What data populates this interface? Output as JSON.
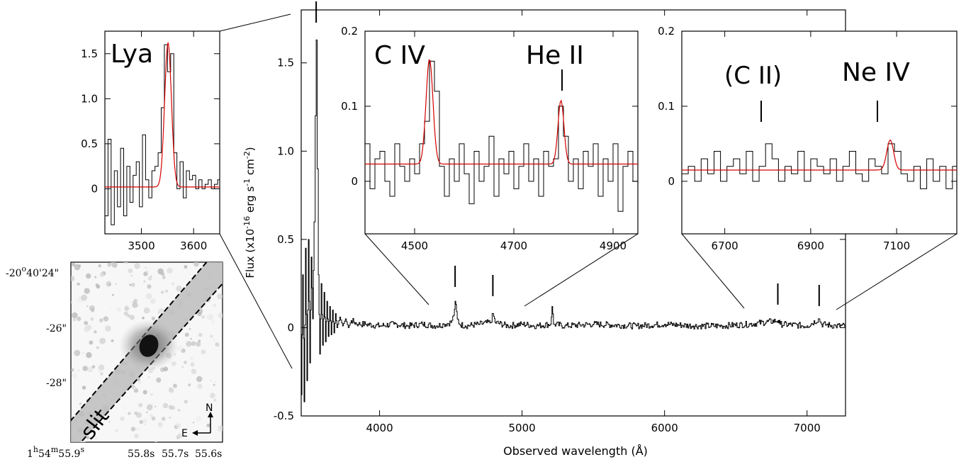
{
  "figure": {
    "main_ylabel": "Flux (x10",
    "main_ylabel_exp1": "-16",
    "main_ylabel_mid": " erg s",
    "main_ylabel_exp2": "-1",
    "main_ylabel_mid2": " cm",
    "main_ylabel_exp3": "-2",
    "main_ylabel_end": ")",
    "main_xlabel": "Observed wavelength (Å)"
  },
  "labels": {
    "lya": "Lya",
    "civ": "C IV",
    "heii": "He II",
    "cii": "(C II)",
    "neiv": "Ne IV",
    "slit": "slit",
    "north": "N",
    "east": "E"
  },
  "image_axes": {
    "dec_ticks": [
      {
        "label": "-20",
        "sup": "o",
        "rest": "40'24\""
      },
      {
        "label": "-26\""
      },
      {
        "label": "-28\""
      }
    ],
    "ra_first": {
      "base": "1",
      "h": "h",
      "mid": "54",
      "m": "m",
      "sec": "55.9",
      "s": "s"
    },
    "ra_ticks": [
      "55.8s",
      "55.7s",
      "55.6s"
    ]
  },
  "colors": {
    "data_line": "#000000",
    "model_line": "#d40000",
    "slit_fill": "#bdbdbd",
    "galaxy_core": "#111111"
  },
  "chart_data": [
    {
      "id": "main",
      "type": "line",
      "title": "",
      "xlabel": "Observed wavelength (Å)",
      "ylabel": "Flux (x10^-16 erg s^-1 cm^-2)",
      "xlim": [
        3450,
        7270
      ],
      "ylim": [
        -0.5,
        1.8
      ],
      "xticks": [
        4000,
        5000,
        6000,
        7000
      ],
      "yticks": [
        -0.5,
        0,
        0.5,
        1.0,
        1.5
      ],
      "ytick_labels": [
        "-0.5",
        "0",
        "0.5",
        "1.0",
        "1.5"
      ],
      "line_markers_x": [
        3555,
        4530,
        4795,
        6795,
        7085
      ],
      "series": [
        {
          "x": [
            3450,
            3460,
            3470,
            3480,
            3490,
            3500,
            3510,
            3520,
            3530,
            3540,
            3548,
            3555,
            3562,
            3570,
            3580,
            3590,
            3600,
            3610,
            3620,
            3630,
            3640,
            3650,
            3660,
            3670,
            3680,
            3690,
            3700,
            3720,
            3740,
            3760,
            3780,
            3800,
            3850,
            3900,
            4000,
            4100,
            4200,
            4300,
            4400,
            4450,
            4500,
            4520,
            4530,
            4545,
            4560,
            4600,
            4700,
            4780,
            4795,
            4810,
            4900,
            5000,
            5100,
            5200,
            5210,
            5220,
            5300,
            5500,
            5800,
            6000,
            6200,
            6400,
            6600,
            6795,
            6810,
            7000,
            7085,
            7100,
            7200,
            7270
          ],
          "y": [
            -0.38,
            0.3,
            -0.42,
            0.45,
            -0.3,
            0.5,
            -0.2,
            0.4,
            0.05,
            0.6,
            1.2,
            1.63,
            0.9,
            0.3,
            -0.15,
            0.25,
            -0.1,
            0.2,
            -0.08,
            0.15,
            -0.05,
            0.12,
            -0.04,
            0.1,
            -0.03,
            0.08,
            0.0,
            0.06,
            0.01,
            0.05,
            0.0,
            0.04,
            0.02,
            0.02,
            0.01,
            0.02,
            0.01,
            0.02,
            0.01,
            0.02,
            0.03,
            0.07,
            0.15,
            0.05,
            0.02,
            0.01,
            0.02,
            0.03,
            0.08,
            0.03,
            0.01,
            0.02,
            0.01,
            0.02,
            0.12,
            0.02,
            0.01,
            0.02,
            0.01,
            0.02,
            0.01,
            0.01,
            0.02,
            0.04,
            0.02,
            0.01,
            0.05,
            0.02,
            0.01,
            0.01
          ]
        }
      ]
    },
    {
      "id": "lya_inset",
      "type": "line",
      "xlim": [
        3430,
        3650
      ],
      "ylim": [
        -0.5,
        1.75
      ],
      "xticks": [
        3500,
        3600
      ],
      "yticks": [
        0,
        0.5,
        1.0,
        1.5
      ],
      "ytick_labels": [
        "0",
        "0.5",
        "1.0",
        "1.5"
      ],
      "series": [
        {
          "name": "data",
          "x": [
            3430,
            3436,
            3442,
            3448,
            3454,
            3460,
            3466,
            3472,
            3478,
            3484,
            3490,
            3496,
            3502,
            3508,
            3514,
            3520,
            3526,
            3532,
            3538,
            3544,
            3550,
            3556,
            3562,
            3568,
            3574,
            3580,
            3586,
            3592,
            3598,
            3604,
            3610,
            3616,
            3622,
            3628,
            3634,
            3640,
            3646,
            3650
          ],
          "y": [
            -0.3,
            0.55,
            -0.4,
            0.2,
            -0.2,
            0.45,
            -0.3,
            0.25,
            -0.15,
            0.15,
            0.3,
            -0.2,
            0.6,
            0.1,
            -0.1,
            0.2,
            0.25,
            0.4,
            0.9,
            1.6,
            1.3,
            1.5,
            0.4,
            0.0,
            0.3,
            -0.1,
            0.2,
            0.1,
            0.15,
            0.0,
            0.1,
            0.0,
            0.05,
            0.1,
            0.0,
            0.05,
            0.1,
            0.05
          ]
        },
        {
          "name": "fit",
          "type": "gaussian",
          "amp": 1.6,
          "center": 3551,
          "sigma": 6.5,
          "baseline": 0.02
        }
      ]
    },
    {
      "id": "civ_heii_inset",
      "type": "line",
      "xlim": [
        4400,
        4950
      ],
      "ylim": [
        -0.07,
        0.2
      ],
      "xticks": [
        4500,
        4700,
        4900
      ],
      "yticks": [
        0,
        0.1,
        0.2
      ],
      "ytick_labels": [
        "0",
        "0.1",
        "0.2"
      ],
      "series": [
        {
          "name": "data",
          "x": [
            4400,
            4410,
            4420,
            4430,
            4440,
            4450,
            4460,
            4470,
            4480,
            4490,
            4500,
            4510,
            4520,
            4530,
            4540,
            4550,
            4560,
            4570,
            4580,
            4590,
            4600,
            4610,
            4620,
            4630,
            4640,
            4650,
            4660,
            4670,
            4680,
            4690,
            4700,
            4710,
            4720,
            4730,
            4740,
            4750,
            4760,
            4770,
            4780,
            4790,
            4800,
            4810,
            4820,
            4830,
            4840,
            4850,
            4860,
            4870,
            4880,
            4890,
            4900,
            4910,
            4920,
            4930,
            4940,
            4950
          ],
          "y": [
            0.05,
            -0.01,
            0.03,
            0.04,
            0.0,
            -0.02,
            0.05,
            0.02,
            0.0,
            0.03,
            0.01,
            0.05,
            0.08,
            0.16,
            0.12,
            0.02,
            -0.02,
            0.03,
            0.0,
            0.05,
            0.01,
            -0.03,
            0.04,
            0.0,
            0.02,
            0.06,
            -0.02,
            0.03,
            0.01,
            0.04,
            -0.01,
            0.02,
            0.05,
            0.0,
            0.03,
            -0.02,
            0.04,
            0.02,
            0.03,
            0.1,
            0.06,
            0.0,
            0.03,
            -0.01,
            0.04,
            0.02,
            0.05,
            -0.02,
            0.03,
            0.0,
            0.05,
            -0.04,
            0.02,
            0.04,
            0.0,
            0.01
          ]
        },
        {
          "name": "fit",
          "type": "gaussian_pair",
          "peaks": [
            {
              "amp": 0.14,
              "center": 4530,
              "sigma": 7
            },
            {
              "amp": 0.085,
              "center": 4795,
              "sigma": 6
            }
          ],
          "baseline": 0.023
        }
      ]
    },
    {
      "id": "cii_neiv_inset",
      "type": "line",
      "xlim": [
        6600,
        7240
      ],
      "ylim": [
        -0.07,
        0.2
      ],
      "xticks": [
        6700,
        6900,
        7100
      ],
      "yticks": [
        0,
        0.1,
        0.2
      ],
      "ytick_labels": [
        "0",
        "0.1",
        "0.2"
      ],
      "series": [
        {
          "name": "data",
          "x": [
            6600,
            6615,
            6630,
            6645,
            6660,
            6675,
            6690,
            6705,
            6720,
            6735,
            6750,
            6765,
            6780,
            6795,
            6810,
            6825,
            6840,
            6855,
            6870,
            6885,
            6900,
            6915,
            6930,
            6945,
            6960,
            6975,
            6990,
            7005,
            7020,
            7035,
            7050,
            7065,
            7080,
            7095,
            7110,
            7125,
            7140,
            7155,
            7170,
            7185,
            7200,
            7215,
            7230,
            7240
          ],
          "y": [
            0.01,
            0.02,
            0.0,
            0.03,
            0.01,
            0.04,
            0.0,
            0.02,
            0.03,
            0.01,
            0.04,
            0.0,
            0.02,
            0.05,
            0.03,
            0.0,
            0.02,
            0.01,
            0.04,
            0.0,
            0.03,
            0.02,
            0.01,
            0.03,
            0.0,
            0.02,
            0.04,
            0.01,
            0.0,
            0.03,
            0.02,
            0.01,
            0.05,
            0.04,
            0.01,
            0.0,
            0.02,
            -0.01,
            0.03,
            0.0,
            0.02,
            -0.01,
            0.02,
            0.01
          ]
        },
        {
          "name": "fit",
          "type": "gaussian",
          "amp": 0.04,
          "center": 7085,
          "sigma": 8,
          "baseline": 0.015
        }
      ]
    }
  ]
}
